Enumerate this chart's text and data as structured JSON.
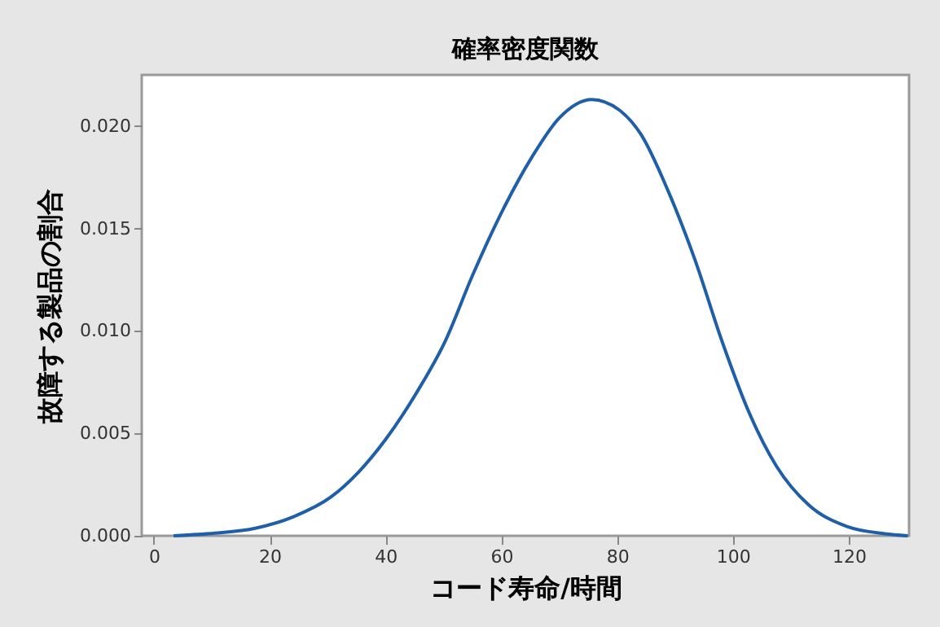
{
  "chart_data": {
    "type": "line",
    "title": "確率密度関数",
    "xlabel": "コード寿命/時間",
    "ylabel": "故障する製品の割合",
    "x": [
      3.4,
      10.5,
      17.5,
      24.1,
      30.6,
      35.3,
      40.0,
      45.6,
      50.3,
      55.0,
      60.6,
      65.3,
      70.0,
      75.6,
      80.3,
      84.1,
      88.7,
      93.4,
      98.1,
      102.8,
      107.5,
      113.1,
      119.7,
      126.2,
      130.2
    ],
    "series": [
      {
        "color": "#1f5ea8",
        "values": [
          0,
          0.00013,
          0.00037,
          0.00093,
          0.0019,
          0.0031,
          0.0047,
          0.0071,
          0.0095,
          0.0127,
          0.0161,
          0.0185,
          0.0204,
          0.0213,
          0.0208,
          0.0196,
          0.0169,
          0.0135,
          0.0095,
          0.006,
          0.0034,
          0.0015,
          0.00045,
          0.0001,
          0
        ]
      }
    ],
    "xlim": [
      -2.1,
      130.4
    ],
    "ylim": [
      0,
      0.0225
    ],
    "xticks": [
      0,
      20,
      40,
      60,
      80,
      100,
      120
    ],
    "yticks": [
      {
        "value": 0,
        "label": "0.000"
      },
      {
        "value": 0.005,
        "label": "0.005"
      },
      {
        "value": 0.01,
        "label": "0.010"
      },
      {
        "value": 0.015,
        "label": "0.015"
      },
      {
        "value": 0.02,
        "label": "0.020"
      }
    ],
    "grid": false,
    "legend": false,
    "marker": "none",
    "line_style": "solid"
  }
}
